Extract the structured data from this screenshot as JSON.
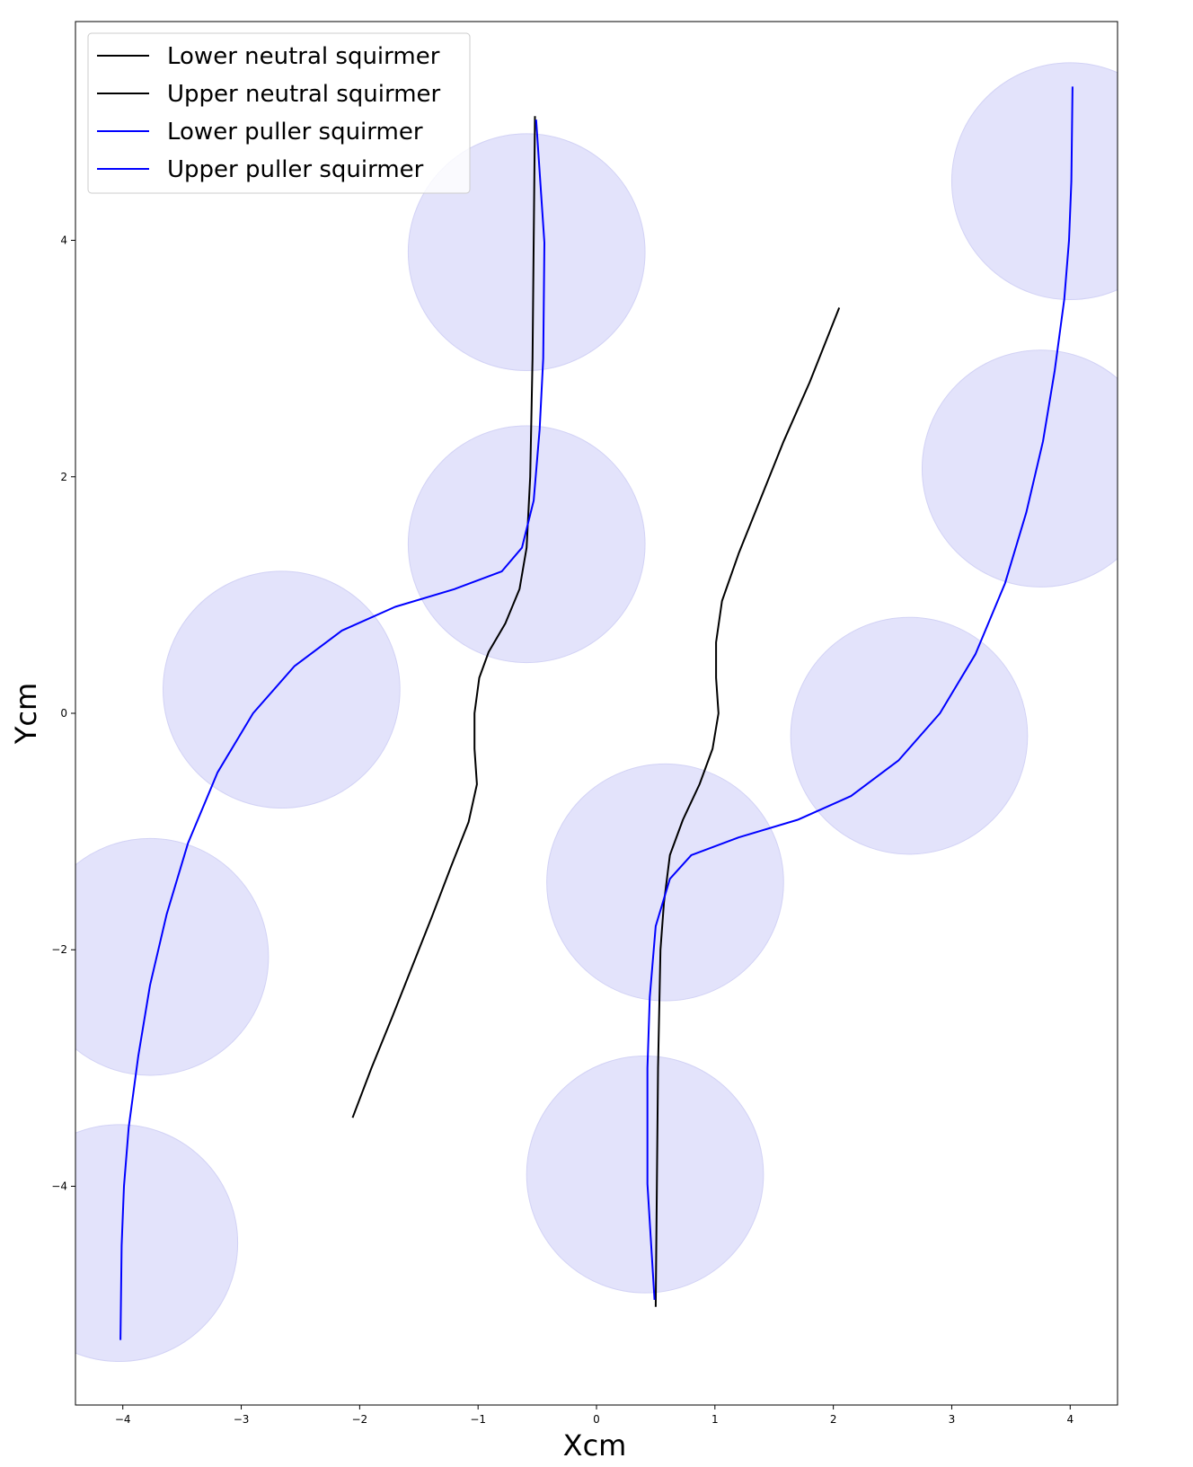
{
  "chart_data": {
    "type": "line",
    "title": "",
    "xlabel": "Xcm",
    "ylabel": "Ycm",
    "xlim": [
      -4.4,
      4.4
    ],
    "ylim": [
      -5.85,
      5.85
    ],
    "x_ticks": [
      -4,
      -3,
      -2,
      -1,
      0,
      1,
      2,
      3,
      4
    ],
    "y_ticks": [
      -4,
      -2,
      0,
      2,
      4
    ],
    "grid": false,
    "legend_position": "top-left",
    "circle_color": "#e3e3fb",
    "circle_edge_color": "#d2d2f5",
    "circles": [
      {
        "cx": -0.59,
        "cy": 3.9,
        "r": 1.0
      },
      {
        "cx": -0.59,
        "cy": 1.43,
        "r": 1.0
      },
      {
        "cx": -2.66,
        "cy": 0.2,
        "r": 1.0
      },
      {
        "cx": -3.77,
        "cy": -2.06,
        "r": 1.0
      },
      {
        "cx": -4.03,
        "cy": -4.48,
        "r": 1.0
      },
      {
        "cx": 0.58,
        "cy": -1.43,
        "r": 1.0
      },
      {
        "cx": 0.41,
        "cy": -3.9,
        "r": 1.0
      },
      {
        "cx": 2.64,
        "cy": -0.19,
        "r": 1.0
      },
      {
        "cx": 3.75,
        "cy": 2.07,
        "r": 1.0
      },
      {
        "cx": 4.0,
        "cy": 4.5,
        "r": 1.0
      }
    ],
    "series": [
      {
        "name": "Lower neutral squirmer",
        "color": "#000000",
        "points": [
          [
            -2.06,
            -3.42
          ],
          [
            -1.9,
            -3.0
          ],
          [
            -1.73,
            -2.58
          ],
          [
            -1.56,
            -2.15
          ],
          [
            -1.39,
            -1.72
          ],
          [
            -1.23,
            -1.3
          ],
          [
            -1.08,
            -0.92
          ],
          [
            -1.01,
            -0.6
          ],
          [
            -1.03,
            -0.3
          ],
          [
            -1.03,
            0.0
          ],
          [
            -0.99,
            0.3
          ],
          [
            -0.91,
            0.52
          ],
          [
            -0.77,
            0.76
          ],
          [
            -0.65,
            1.05
          ],
          [
            -0.59,
            1.4
          ],
          [
            -0.56,
            2.0
          ],
          [
            -0.54,
            3.0
          ],
          [
            -0.53,
            4.0
          ],
          [
            -0.52,
            5.05
          ]
        ]
      },
      {
        "name": "Upper neutral squirmer",
        "color": "#000000",
        "points": [
          [
            0.5,
            -5.02
          ],
          [
            0.51,
            -4.0
          ],
          [
            0.52,
            -3.0
          ],
          [
            0.54,
            -2.0
          ],
          [
            0.57,
            -1.6
          ],
          [
            0.62,
            -1.2
          ],
          [
            0.73,
            -0.9
          ],
          [
            0.87,
            -0.6
          ],
          [
            0.98,
            -0.3
          ],
          [
            1.03,
            0.0
          ],
          [
            1.01,
            0.3
          ],
          [
            1.01,
            0.6
          ],
          [
            1.06,
            0.95
          ],
          [
            1.2,
            1.35
          ],
          [
            1.38,
            1.8
          ],
          [
            1.58,
            2.3
          ],
          [
            1.8,
            2.8
          ],
          [
            2.05,
            3.43
          ]
        ]
      },
      {
        "name": "Lower puller squirmer",
        "color": "#0000ff",
        "points": [
          [
            -4.02,
            -5.3
          ],
          [
            -4.01,
            -4.5
          ],
          [
            -3.99,
            -4.0
          ],
          [
            -3.95,
            -3.5
          ],
          [
            -3.87,
            -2.9
          ],
          [
            -3.77,
            -2.3
          ],
          [
            -3.63,
            -1.7
          ],
          [
            -3.45,
            -1.1
          ],
          [
            -3.2,
            -0.5
          ],
          [
            -2.9,
            0.0
          ],
          [
            -2.55,
            0.4
          ],
          [
            -2.15,
            0.7
          ],
          [
            -1.7,
            0.9
          ],
          [
            -1.2,
            1.05
          ],
          [
            -0.8,
            1.2
          ],
          [
            -0.63,
            1.4
          ],
          [
            -0.53,
            1.8
          ],
          [
            -0.48,
            2.4
          ],
          [
            -0.45,
            3.0
          ],
          [
            -0.44,
            3.98
          ],
          [
            -0.51,
            5.02
          ]
        ]
      },
      {
        "name": "Upper puller squirmer",
        "color": "#0000ff",
        "points": [
          [
            0.49,
            -4.96
          ],
          [
            0.43,
            -3.98
          ],
          [
            0.43,
            -3.0
          ],
          [
            0.45,
            -2.4
          ],
          [
            0.5,
            -1.8
          ],
          [
            0.62,
            -1.4
          ],
          [
            0.8,
            -1.2
          ],
          [
            1.2,
            -1.05
          ],
          [
            1.7,
            -0.9
          ],
          [
            2.15,
            -0.7
          ],
          [
            2.55,
            -0.4
          ],
          [
            2.9,
            0.0
          ],
          [
            3.2,
            0.5
          ],
          [
            3.45,
            1.1
          ],
          [
            3.63,
            1.7
          ],
          [
            3.77,
            2.3
          ],
          [
            3.87,
            2.9
          ],
          [
            3.95,
            3.5
          ],
          [
            3.99,
            4.0
          ],
          [
            4.01,
            4.5
          ],
          [
            4.02,
            5.3
          ]
        ]
      }
    ]
  }
}
